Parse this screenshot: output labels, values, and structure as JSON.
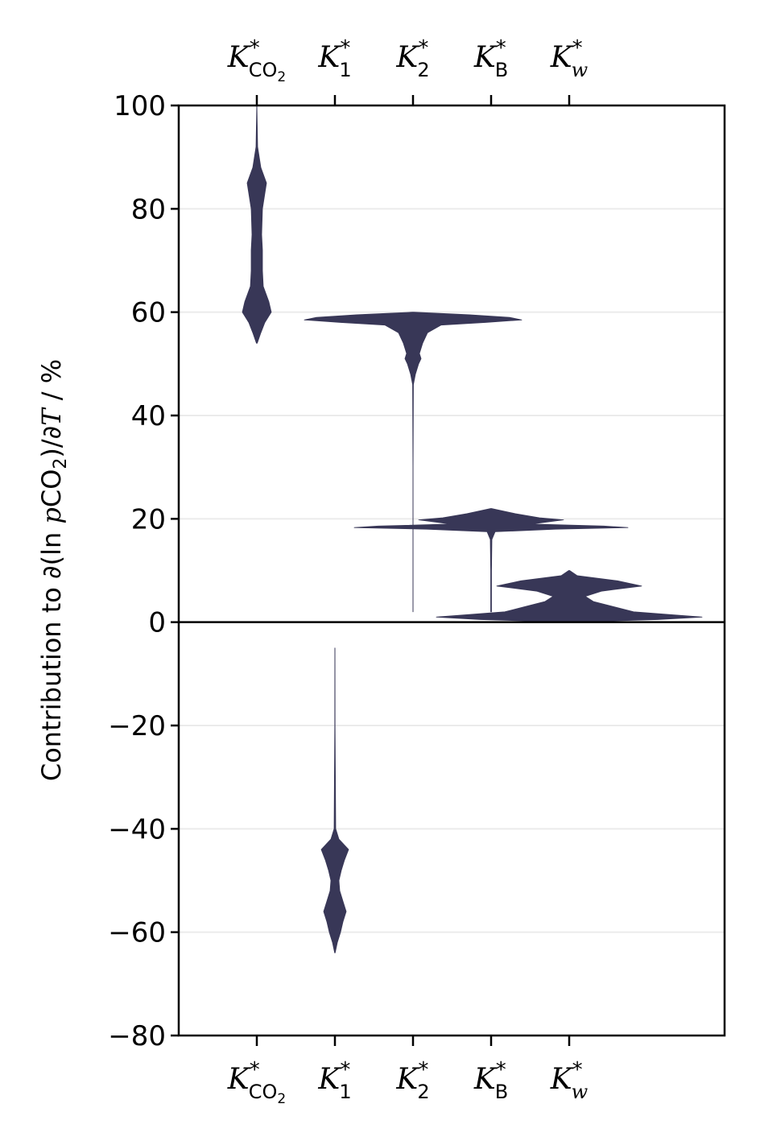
{
  "chart_data": {
    "type": "violin",
    "ylabel": "Contribution to ∂(ln pCO2)/∂T / %",
    "ylim": [
      -80,
      100
    ],
    "yticks": [
      -80,
      -60,
      -40,
      -20,
      0,
      20,
      40,
      60,
      80,
      100
    ],
    "grid": "horizontal, light",
    "zero_line": true,
    "color": "#383757",
    "categories": [
      {
        "base": "K",
        "sup": "*",
        "sub": "CO",
        "sub2": "2",
        "sub_italic": false
      },
      {
        "base": "K",
        "sup": "*",
        "sub": "1",
        "sub2": "",
        "sub_italic": false
      },
      {
        "base": "K",
        "sup": "*",
        "sub": "2",
        "sub2": "",
        "sub_italic": false
      },
      {
        "base": "K",
        "sup": "*",
        "sub": "B",
        "sub2": "",
        "sub_italic": false
      },
      {
        "base": "K",
        "sup": "*",
        "sub": "w",
        "sub2": "",
        "sub_italic": true
      }
    ],
    "series": [
      {
        "profile": [
          [
            100,
            0.1
          ],
          [
            92,
            1
          ],
          [
            88,
            5
          ],
          [
            85,
            12
          ],
          [
            83,
            10
          ],
          [
            80,
            7
          ],
          [
            75,
            6
          ],
          [
            72,
            7
          ],
          [
            68,
            7
          ],
          [
            65,
            8
          ],
          [
            62,
            15
          ],
          [
            60,
            18
          ],
          [
            58,
            10
          ],
          [
            56,
            5
          ],
          [
            54,
            0.5
          ]
        ]
      },
      {
        "profile": [
          [
            -5,
            0.1
          ],
          [
            -20,
            0.2
          ],
          [
            -40,
            1
          ],
          [
            -42,
            5
          ],
          [
            -44,
            17
          ],
          [
            -46,
            12
          ],
          [
            -48,
            8
          ],
          [
            -50,
            5
          ],
          [
            -52,
            6
          ],
          [
            -54,
            10
          ],
          [
            -56,
            14
          ],
          [
            -58,
            10
          ],
          [
            -60,
            7
          ],
          [
            -62,
            3
          ],
          [
            -64,
            0.3
          ]
        ]
      },
      {
        "profile": [
          [
            60,
            1
          ],
          [
            59.5,
            70
          ],
          [
            59,
            120
          ],
          [
            58.5,
            135
          ],
          [
            58,
            90
          ],
          [
            57.5,
            35
          ],
          [
            56,
            18
          ],
          [
            54,
            12
          ],
          [
            52,
            8
          ],
          [
            51,
            10
          ],
          [
            50,
            7
          ],
          [
            48,
            3
          ],
          [
            46,
            0.5
          ],
          [
            30,
            0.1
          ],
          [
            2,
            0.1
          ]
        ]
      },
      {
        "profile": [
          [
            22,
            0.5
          ],
          [
            21,
            30
          ],
          [
            20.2,
            60
          ],
          [
            19.8,
            90
          ],
          [
            19,
            50
          ],
          [
            18.6,
            140
          ],
          [
            18.3,
            170
          ],
          [
            18,
            80
          ],
          [
            17.5,
            5
          ],
          [
            16,
            1
          ],
          [
            10,
            0.5
          ],
          [
            2,
            0.5
          ]
        ]
      },
      {
        "profile": [
          [
            10,
            0.5
          ],
          [
            9,
            10
          ],
          [
            8,
            60
          ],
          [
            7,
            90
          ],
          [
            6,
            40
          ],
          [
            5,
            20
          ],
          [
            4,
            30
          ],
          [
            3,
            55
          ],
          [
            2,
            80
          ],
          [
            1,
            165
          ],
          [
            0.5,
            110
          ],
          [
            0,
            0
          ]
        ]
      }
    ]
  }
}
